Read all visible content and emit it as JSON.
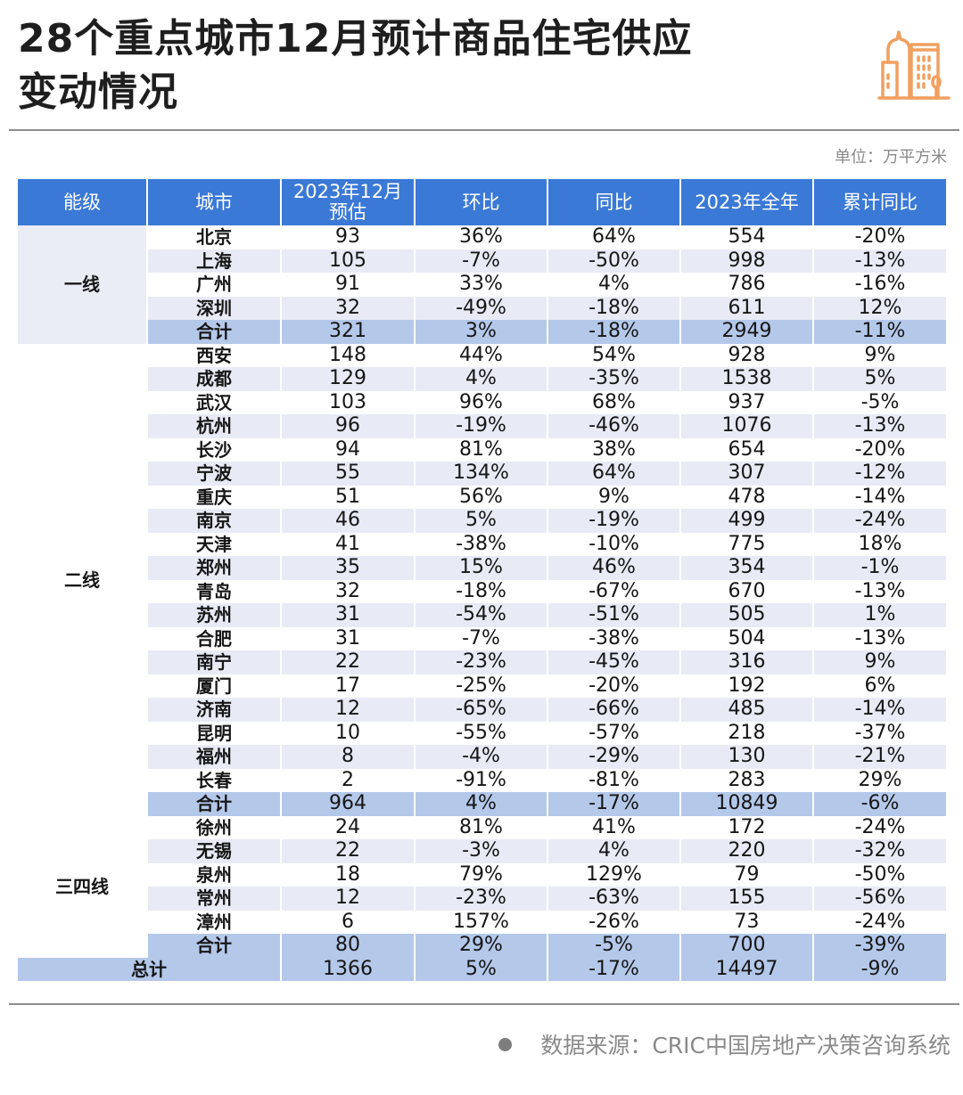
{
  "header": {
    "title_line1": "28个重点城市12月预计商品住宅供应",
    "title_line2": "变动情况",
    "icon": "building-icon",
    "icon_color": "#f0a060",
    "unit": "单位：万平方米"
  },
  "table": {
    "columns": [
      "能级",
      "城市",
      "2023年12月\n预估",
      "环比",
      "同比",
      "2023年全年",
      "累计同比"
    ],
    "col_labels": {
      "tier": "能级",
      "city": "城市",
      "dec_est_line1": "2023年12月",
      "dec_est_line2": "预估",
      "mom": "环比",
      "yoy": "同比",
      "full_year": "2023年全年",
      "cum_yoy": "累计同比"
    },
    "tiers": {
      "t1": "一线",
      "t2": "二线",
      "t34": "三四线"
    },
    "rows": [
      {
        "tier": "一线",
        "city": "北京",
        "dec": "93",
        "mom": "36%",
        "yoy": "64%",
        "year": "554",
        "cum": "-20%"
      },
      {
        "tier": "一线",
        "city": "上海",
        "dec": "105",
        "mom": "-7%",
        "yoy": "-50%",
        "year": "998",
        "cum": "-13%"
      },
      {
        "tier": "一线",
        "city": "广州",
        "dec": "91",
        "mom": "33%",
        "yoy": "4%",
        "year": "786",
        "cum": "-16%"
      },
      {
        "tier": "一线",
        "city": "深圳",
        "dec": "32",
        "mom": "-49%",
        "yoy": "-18%",
        "year": "611",
        "cum": "12%"
      },
      {
        "tier": "一线",
        "city": "合计",
        "dec": "321",
        "mom": "3%",
        "yoy": "-18%",
        "year": "2949",
        "cum": "-11%"
      },
      {
        "tier": "二线",
        "city": "西安",
        "dec": "148",
        "mom": "44%",
        "yoy": "54%",
        "year": "928",
        "cum": "9%"
      },
      {
        "tier": "二线",
        "city": "成都",
        "dec": "129",
        "mom": "4%",
        "yoy": "-35%",
        "year": "1538",
        "cum": "5%"
      },
      {
        "tier": "二线",
        "city": "武汉",
        "dec": "103",
        "mom": "96%",
        "yoy": "68%",
        "year": "937",
        "cum": "-5%"
      },
      {
        "tier": "二线",
        "city": "杭州",
        "dec": "96",
        "mom": "-19%",
        "yoy": "-46%",
        "year": "1076",
        "cum": "-13%"
      },
      {
        "tier": "二线",
        "city": "长沙",
        "dec": "94",
        "mom": "81%",
        "yoy": "38%",
        "year": "654",
        "cum": "-20%"
      },
      {
        "tier": "二线",
        "city": "宁波",
        "dec": "55",
        "mom": "134%",
        "yoy": "64%",
        "year": "307",
        "cum": "-12%"
      },
      {
        "tier": "二线",
        "city": "重庆",
        "dec": "51",
        "mom": "56%",
        "yoy": "9%",
        "year": "478",
        "cum": "-14%"
      },
      {
        "tier": "二线",
        "city": "南京",
        "dec": "46",
        "mom": "5%",
        "yoy": "-19%",
        "year": "499",
        "cum": "-24%"
      },
      {
        "tier": "二线",
        "city": "天津",
        "dec": "41",
        "mom": "-38%",
        "yoy": "-10%",
        "year": "775",
        "cum": "18%"
      },
      {
        "tier": "二线",
        "city": "郑州",
        "dec": "35",
        "mom": "15%",
        "yoy": "46%",
        "year": "354",
        "cum": "-1%"
      },
      {
        "tier": "二线",
        "city": "青岛",
        "dec": "32",
        "mom": "-18%",
        "yoy": "-67%",
        "year": "670",
        "cum": "-13%"
      },
      {
        "tier": "二线",
        "city": "苏州",
        "dec": "31",
        "mom": "-54%",
        "yoy": "-51%",
        "year": "505",
        "cum": "1%"
      },
      {
        "tier": "二线",
        "city": "合肥",
        "dec": "31",
        "mom": "-7%",
        "yoy": "-38%",
        "year": "504",
        "cum": "-13%"
      },
      {
        "tier": "二线",
        "city": "南宁",
        "dec": "22",
        "mom": "-23%",
        "yoy": "-45%",
        "year": "316",
        "cum": "9%"
      },
      {
        "tier": "二线",
        "city": "厦门",
        "dec": "17",
        "mom": "-25%",
        "yoy": "-20%",
        "year": "192",
        "cum": "6%"
      },
      {
        "tier": "二线",
        "city": "济南",
        "dec": "12",
        "mom": "-65%",
        "yoy": "-66%",
        "year": "485",
        "cum": "-14%"
      },
      {
        "tier": "二线",
        "city": "昆明",
        "dec": "10",
        "mom": "-55%",
        "yoy": "-57%",
        "year": "218",
        "cum": "-37%"
      },
      {
        "tier": "二线",
        "city": "福州",
        "dec": "8",
        "mom": "-4%",
        "yoy": "-29%",
        "year": "130",
        "cum": "-21%"
      },
      {
        "tier": "二线",
        "city": "长春",
        "dec": "2",
        "mom": "-91%",
        "yoy": "-81%",
        "year": "283",
        "cum": "29%"
      },
      {
        "tier": "二线",
        "city": "合计",
        "dec": "964",
        "mom": "4%",
        "yoy": "-17%",
        "year": "10849",
        "cum": "-6%"
      },
      {
        "tier": "三四线",
        "city": "徐州",
        "dec": "24",
        "mom": "81%",
        "yoy": "41%",
        "year": "172",
        "cum": "-24%"
      },
      {
        "tier": "三四线",
        "city": "无锡",
        "dec": "22",
        "mom": "-3%",
        "yoy": "4%",
        "year": "220",
        "cum": "-32%"
      },
      {
        "tier": "三四线",
        "city": "泉州",
        "dec": "18",
        "mom": "79%",
        "yoy": "129%",
        "year": "79",
        "cum": "-50%"
      },
      {
        "tier": "三四线",
        "city": "常州",
        "dec": "12",
        "mom": "-23%",
        "yoy": "-63%",
        "year": "155",
        "cum": "-56%"
      },
      {
        "tier": "三四线",
        "city": "漳州",
        "dec": "6",
        "mom": "157%",
        "yoy": "-26%",
        "year": "73",
        "cum": "-24%"
      },
      {
        "tier": "三四线",
        "city": "合计",
        "dec": "80",
        "mom": "29%",
        "yoy": "-5%",
        "year": "700",
        "cum": "-39%"
      }
    ],
    "total": {
      "label": "总计",
      "dec": "1366",
      "mom": "5%",
      "yoy": "-17%",
      "year": "14497",
      "cum": "-9%"
    }
  },
  "footer": {
    "source": "数据来源：CRIC中国房地产决策咨询系统"
  },
  "colors": {
    "header_bg": "#3b79d6",
    "subtotal_bg": "#b4c8ea",
    "alt_row_bg": "#e8ebf5",
    "icon_orange": "#f0a060"
  },
  "chart_data": {
    "type": "table",
    "title": "28个重点城市12月预计商品住宅供应变动情况",
    "unit": "万平方米",
    "columns": [
      "能级",
      "城市",
      "2023年12月预估",
      "环比",
      "同比",
      "2023年全年",
      "累计同比"
    ],
    "rows": [
      [
        "一线",
        "北京",
        93,
        "36%",
        "64%",
        554,
        "-20%"
      ],
      [
        "一线",
        "上海",
        105,
        "-7%",
        "-50%",
        998,
        "-13%"
      ],
      [
        "一线",
        "广州",
        91,
        "33%",
        "4%",
        786,
        "-16%"
      ],
      [
        "一线",
        "深圳",
        32,
        "-49%",
        "-18%",
        611,
        "12%"
      ],
      [
        "一线",
        "合计",
        321,
        "3%",
        "-18%",
        2949,
        "-11%"
      ],
      [
        "二线",
        "西安",
        148,
        "44%",
        "54%",
        928,
        "9%"
      ],
      [
        "二线",
        "成都",
        129,
        "4%",
        "-35%",
        1538,
        "5%"
      ],
      [
        "二线",
        "武汉",
        103,
        "96%",
        "68%",
        937,
        "-5%"
      ],
      [
        "二线",
        "杭州",
        96,
        "-19%",
        "-46%",
        1076,
        "-13%"
      ],
      [
        "二线",
        "长沙",
        94,
        "81%",
        "38%",
        654,
        "-20%"
      ],
      [
        "二线",
        "宁波",
        55,
        "134%",
        "64%",
        307,
        "-12%"
      ],
      [
        "二线",
        "重庆",
        51,
        "56%",
        "9%",
        478,
        "-14%"
      ],
      [
        "二线",
        "南京",
        46,
        "5%",
        "-19%",
        499,
        "-24%"
      ],
      [
        "二线",
        "天津",
        41,
        "-38%",
        "-10%",
        775,
        "18%"
      ],
      [
        "二线",
        "郑州",
        35,
        "15%",
        "46%",
        354,
        "-1%"
      ],
      [
        "二线",
        "青岛",
        32,
        "-18%",
        "-67%",
        670,
        "-13%"
      ],
      [
        "二线",
        "苏州",
        31,
        "-54%",
        "-51%",
        505,
        "1%"
      ],
      [
        "二线",
        "合肥",
        31,
        "-7%",
        "-38%",
        504,
        "-13%"
      ],
      [
        "二线",
        "南宁",
        22,
        "-23%",
        "-45%",
        316,
        "9%"
      ],
      [
        "二线",
        "厦门",
        17,
        "-25%",
        "-20%",
        192,
        "6%"
      ],
      [
        "二线",
        "济南",
        12,
        "-65%",
        "-66%",
        485,
        "-14%"
      ],
      [
        "二线",
        "昆明",
        10,
        "-55%",
        "-57%",
        218,
        "-37%"
      ],
      [
        "二线",
        "福州",
        8,
        "-4%",
        "-29%",
        130,
        "-21%"
      ],
      [
        "二线",
        "长春",
        2,
        "-91%",
        "-81%",
        283,
        "29%"
      ],
      [
        "二线",
        "合计",
        964,
        "4%",
        "-17%",
        10849,
        "-6%"
      ],
      [
        "三四线",
        "徐州",
        24,
        "81%",
        "41%",
        172,
        "-24%"
      ],
      [
        "三四线",
        "无锡",
        22,
        "-3%",
        "4%",
        220,
        "-32%"
      ],
      [
        "三四线",
        "泉州",
        18,
        "79%",
        "129%",
        79,
        "-50%"
      ],
      [
        "三四线",
        "常州",
        12,
        "-23%",
        "-63%",
        155,
        "-56%"
      ],
      [
        "三四线",
        "漳州",
        6,
        "157%",
        "-26%",
        73,
        "-24%"
      ],
      [
        "三四线",
        "合计",
        80,
        "29%",
        "-5%",
        700,
        "-39%"
      ],
      [
        "总计",
        "",
        1366,
        "5%",
        "-17%",
        14497,
        "-9%"
      ]
    ],
    "source": "CRIC中国房地产决策咨询系统"
  }
}
